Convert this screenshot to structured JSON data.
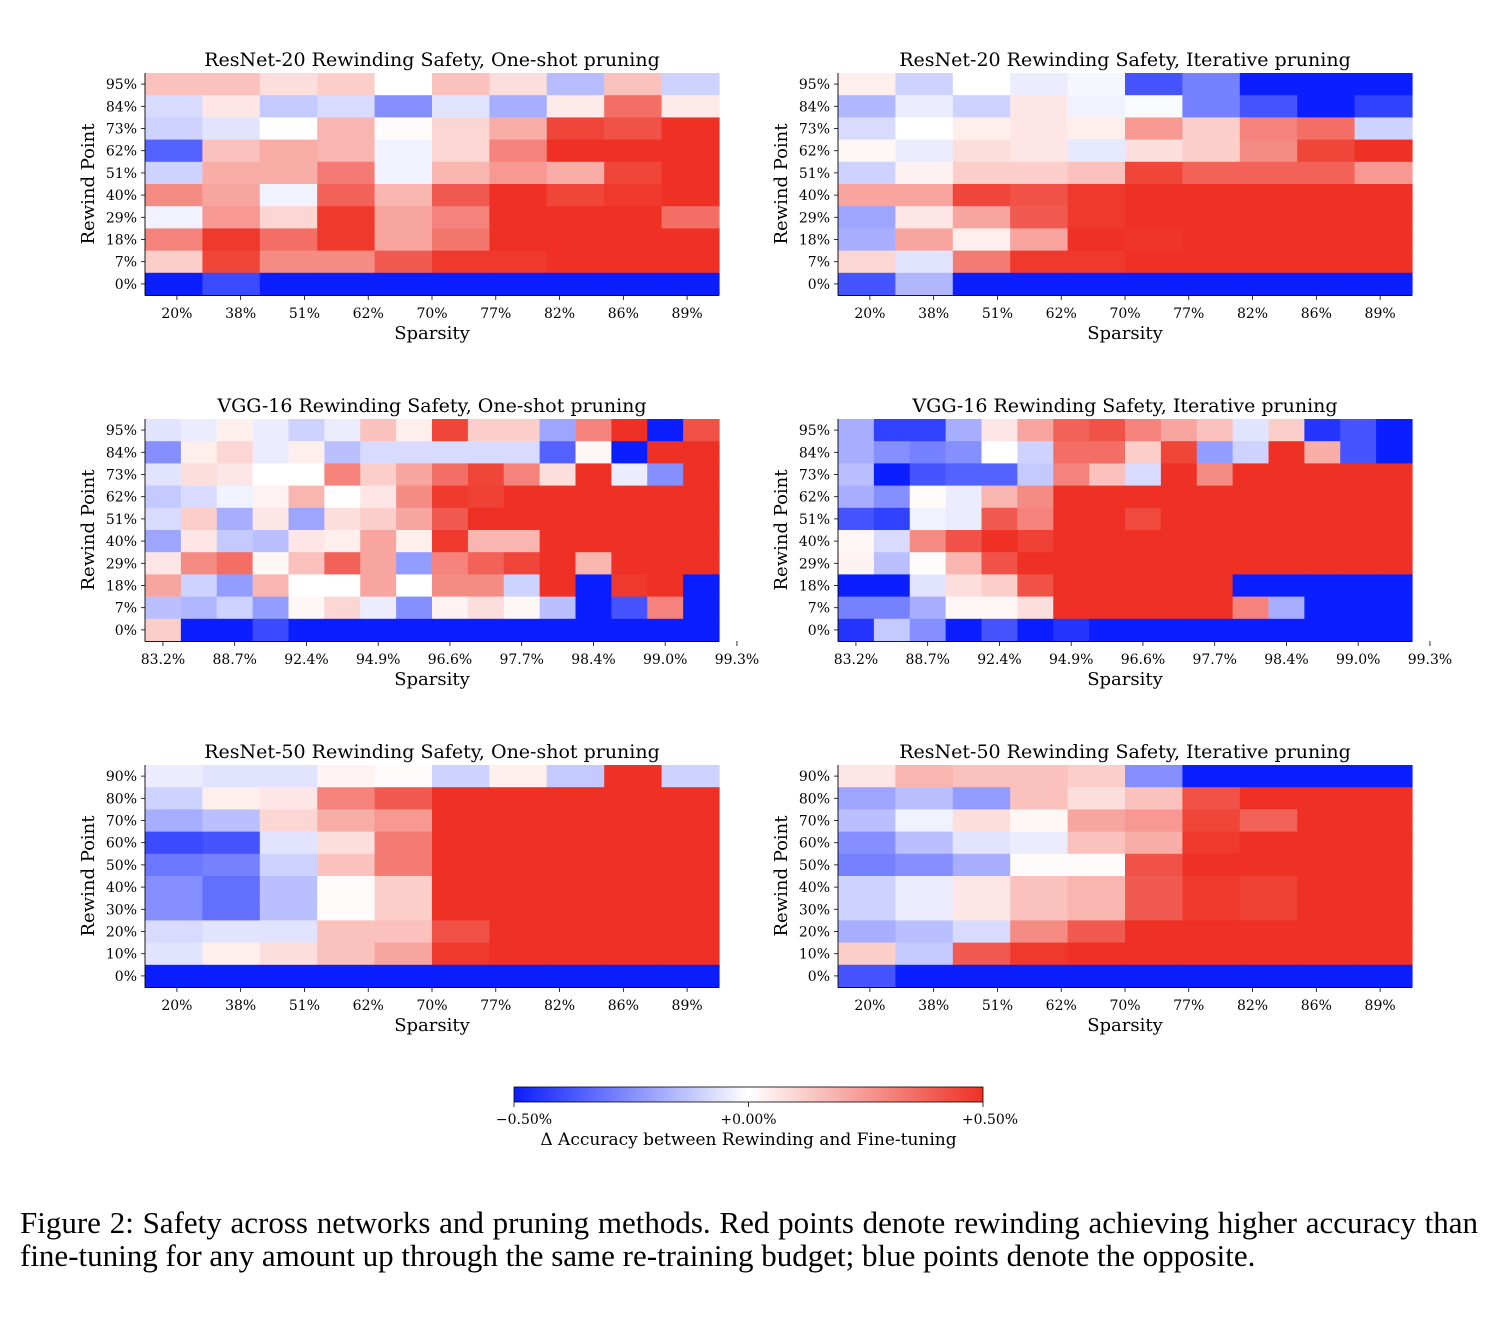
{
  "caption": "Figure 2:  Safety across networks and pruning methods.  Red points denote rewinding achieving higher accuracy than fine-tuning for any amount up through the same re-training budget; blue points denote the opposite.",
  "colors": {
    "negative": "#0a1eff",
    "neutral": "#ffffff",
    "positive": "#ee3124"
  },
  "chart_data": [
    {
      "type": "heatmap",
      "title": "ResNet-20 Rewinding Safety, One-shot pruning",
      "xlabel": "Sparsity",
      "ylabel": "Rewind Point",
      "x_tick_labels": [
        "20%",
        "38%",
        "51%",
        "62%",
        "70%",
        "77%",
        "82%",
        "86%",
        "89%"
      ],
      "y_tick_labels": [
        "95%",
        "84%",
        "73%",
        "62%",
        "51%",
        "40%",
        "29%",
        "18%",
        "7%",
        "0%"
      ],
      "n_cols": 10,
      "values": [
        [
          0.15,
          0.15,
          0.08,
          0.12,
          0,
          0.15,
          0.08,
          -0.15,
          0.15,
          -0.1
        ],
        [
          -0.08,
          0.06,
          -0.12,
          -0.08,
          -0.25,
          -0.06,
          -0.18,
          0.05,
          0.35,
          0.05
        ],
        [
          -0.1,
          -0.06,
          0,
          0.18,
          0.01,
          0.1,
          0.2,
          0.45,
          0.42,
          0.5
        ],
        [
          -0.35,
          0.15,
          0.2,
          0.18,
          -0.03,
          0.1,
          0.3,
          0.5,
          0.5,
          0.5
        ],
        [
          -0.1,
          0.2,
          0.2,
          0.32,
          -0.03,
          0.18,
          0.25,
          0.2,
          0.45,
          0.5
        ],
        [
          0.28,
          0.22,
          -0.03,
          0.38,
          0.18,
          0.4,
          0.5,
          0.45,
          0.48,
          0.5
        ],
        [
          -0.03,
          0.25,
          0.1,
          0.48,
          0.22,
          0.3,
          0.5,
          0.5,
          0.5,
          0.35
        ],
        [
          0.3,
          0.48,
          0.35,
          0.48,
          0.22,
          0.33,
          0.5,
          0.5,
          0.5,
          0.5
        ],
        [
          0.12,
          0.45,
          0.28,
          0.28,
          0.4,
          0.48,
          0.48,
          0.5,
          0.5,
          0.5
        ],
        [
          -0.5,
          -0.4,
          -0.5,
          -0.5,
          -0.5,
          -0.5,
          -0.5,
          -0.5,
          -0.5,
          -0.5
        ]
      ]
    },
    {
      "type": "heatmap",
      "title": "ResNet-20 Rewinding Safety, Iterative pruning",
      "xlabel": "Sparsity",
      "ylabel": "Rewind Point",
      "x_tick_labels": [
        "20%",
        "38%",
        "51%",
        "62%",
        "70%",
        "77%",
        "82%",
        "86%",
        "89%"
      ],
      "y_tick_labels": [
        "95%",
        "84%",
        "73%",
        "62%",
        "51%",
        "40%",
        "29%",
        "18%",
        "7%",
        "0%"
      ],
      "n_cols": 10,
      "values": [
        [
          0.04,
          -0.1,
          0,
          -0.04,
          -0.02,
          -0.38,
          -0.28,
          -0.5,
          -0.5,
          -0.5
        ],
        [
          -0.16,
          -0.04,
          -0.1,
          0.06,
          -0.03,
          -0.01,
          -0.28,
          -0.38,
          -0.5,
          -0.42
        ],
        [
          -0.08,
          0,
          0.04,
          0.06,
          0.04,
          0.25,
          0.12,
          0.3,
          0.35,
          -0.1
        ],
        [
          0.02,
          -0.04,
          0.08,
          0.06,
          -0.05,
          0.08,
          0.12,
          0.28,
          0.45,
          0.5
        ],
        [
          -0.1,
          0.03,
          0.12,
          0.12,
          0.15,
          0.45,
          0.38,
          0.38,
          0.38,
          0.25
        ],
        [
          0.22,
          0.22,
          0.45,
          0.42,
          0.48,
          0.5,
          0.5,
          0.5,
          0.5,
          0.5
        ],
        [
          -0.2,
          0.06,
          0.22,
          0.4,
          0.48,
          0.5,
          0.5,
          0.5,
          0.5,
          0.5
        ],
        [
          -0.18,
          0.22,
          0.04,
          0.22,
          0.5,
          0.49,
          0.5,
          0.5,
          0.5,
          0.5
        ],
        [
          0.1,
          -0.06,
          0.32,
          0.48,
          0.48,
          0.5,
          0.5,
          0.5,
          0.5,
          0.5
        ],
        [
          -0.38,
          -0.16,
          -0.5,
          -0.5,
          -0.5,
          -0.5,
          -0.5,
          -0.5,
          -0.5,
          -0.5
        ]
      ]
    },
    {
      "type": "heatmap",
      "title": "VGG-16 Rewinding Safety, One-shot pruning",
      "xlabel": "Sparsity",
      "ylabel": "Rewind Point",
      "x_tick_labels": [
        "83.2%",
        "88.7%",
        "92.4%",
        "94.9%",
        "96.6%",
        "97.7%",
        "98.4%",
        "99.0%",
        "99.3%"
      ],
      "y_tick_labels": [
        "95%",
        "84%",
        "73%",
        "62%",
        "51%",
        "40%",
        "29%",
        "18%",
        "7%",
        "0%"
      ],
      "n_cols": 16,
      "values": [
        [
          -0.06,
          -0.04,
          0.04,
          -0.04,
          -0.1,
          -0.04,
          0.15,
          0.04,
          0.45,
          0.12,
          0.12,
          -0.2,
          0.3,
          0.5,
          -0.5,
          0.42
        ],
        [
          -0.25,
          0.04,
          0.1,
          -0.04,
          0.04,
          -0.14,
          -0.08,
          -0.08,
          -0.08,
          -0.08,
          -0.08,
          -0.35,
          0.02,
          -0.5,
          0.5,
          0.5
        ],
        [
          -0.06,
          0.08,
          0.06,
          0,
          0,
          0.3,
          0.12,
          0.22,
          0.35,
          0.45,
          0.3,
          0.08,
          0.5,
          -0.04,
          -0.25,
          0.5
        ],
        [
          -0.12,
          -0.08,
          -0.03,
          0.03,
          0.18,
          0,
          0.06,
          0.28,
          0.48,
          0.46,
          0.5,
          0.5,
          0.5,
          0.5,
          0.5,
          0.5
        ],
        [
          -0.08,
          0.12,
          -0.18,
          0.06,
          -0.2,
          0.08,
          0.12,
          0.22,
          0.4,
          0.5,
          0.5,
          0.5,
          0.5,
          0.5,
          0.5,
          0.5
        ],
        [
          -0.2,
          0.06,
          -0.12,
          -0.14,
          0.06,
          0.04,
          0.22,
          0.04,
          0.48,
          0.18,
          0.18,
          0.5,
          0.5,
          0.5,
          0.5,
          0.5
        ],
        [
          0.06,
          0.28,
          0.35,
          0.02,
          0.15,
          0.38,
          0.22,
          -0.22,
          0.3,
          0.38,
          0.45,
          0.5,
          0.18,
          0.5,
          0.5,
          0.5
        ],
        [
          0.22,
          -0.1,
          -0.22,
          0.18,
          0,
          0,
          0.22,
          0,
          0.28,
          0.28,
          -0.1,
          0.5,
          -0.5,
          0.48,
          0.5,
          -0.5
        ],
        [
          -0.14,
          -0.16,
          -0.1,
          -0.22,
          0.02,
          0.1,
          -0.04,
          -0.25,
          0.03,
          0.08,
          0.02,
          -0.14,
          -0.5,
          -0.38,
          0.3,
          -0.5
        ],
        [
          0.12,
          -0.5,
          -0.5,
          -0.4,
          -0.5,
          -0.5,
          -0.5,
          -0.5,
          -0.5,
          -0.5,
          -0.5,
          -0.5,
          -0.5,
          -0.5,
          -0.5,
          -0.5
        ]
      ]
    },
    {
      "type": "heatmap",
      "title": "VGG-16 Rewinding Safety, Iterative pruning",
      "xlabel": "Sparsity",
      "ylabel": "Rewind Point",
      "x_tick_labels": [
        "83.2%",
        "88.7%",
        "92.4%",
        "94.9%",
        "96.6%",
        "97.7%",
        "98.4%",
        "99.0%",
        "99.3%"
      ],
      "y_tick_labels": [
        "95%",
        "84%",
        "73%",
        "62%",
        "51%",
        "40%",
        "29%",
        "18%",
        "7%",
        "0%"
      ],
      "n_cols": 16,
      "values": [
        [
          -0.18,
          -0.42,
          -0.42,
          -0.18,
          0.06,
          0.22,
          0.38,
          0.42,
          0.3,
          0.22,
          0.15,
          -0.06,
          0.12,
          -0.45,
          -0.38,
          -0.5
        ],
        [
          -0.18,
          -0.25,
          -0.28,
          -0.25,
          0,
          -0.1,
          0.35,
          0.35,
          0.12,
          0.45,
          -0.22,
          -0.1,
          0.5,
          0.2,
          -0.38,
          -0.5
        ],
        [
          -0.14,
          -0.5,
          -0.38,
          -0.35,
          -0.35,
          -0.12,
          0.3,
          0.15,
          -0.08,
          0.5,
          0.28,
          0.5,
          0.5,
          0.5,
          0.5,
          0.5
        ],
        [
          -0.18,
          -0.25,
          0.01,
          -0.04,
          0.18,
          0.28,
          0.5,
          0.5,
          0.5,
          0.5,
          0.5,
          0.5,
          0.5,
          0.5,
          0.5,
          0.5
        ],
        [
          -0.38,
          -0.42,
          -0.03,
          -0.04,
          0.4,
          0.3,
          0.5,
          0.5,
          0.44,
          0.5,
          0.5,
          0.5,
          0.5,
          0.5,
          0.5,
          0.5
        ],
        [
          0.02,
          -0.08,
          0.28,
          0.42,
          0.5,
          0.46,
          0.5,
          0.5,
          0.5,
          0.5,
          0.5,
          0.5,
          0.5,
          0.5,
          0.5,
          0.5
        ],
        [
          0.03,
          -0.14,
          0.01,
          0.18,
          0.42,
          0.5,
          0.5,
          0.5,
          0.5,
          0.5,
          0.5,
          0.5,
          0.5,
          0.5,
          0.5,
          0.5
        ],
        [
          -0.5,
          -0.5,
          -0.06,
          0.08,
          0.12,
          0.42,
          0.5,
          0.5,
          0.5,
          0.5,
          0.5,
          -0.5,
          -0.5,
          -0.5,
          -0.5,
          -0.5
        ],
        [
          -0.28,
          -0.28,
          -0.18,
          0.02,
          0.02,
          0.08,
          0.5,
          0.5,
          0.5,
          0.5,
          0.5,
          0.3,
          -0.18,
          -0.5,
          -0.5,
          -0.5
        ],
        [
          -0.45,
          -0.12,
          -0.25,
          -0.5,
          -0.38,
          -0.5,
          -0.45,
          -0.5,
          -0.5,
          -0.5,
          -0.5,
          -0.5,
          -0.5,
          -0.5,
          -0.5,
          -0.5
        ]
      ]
    },
    {
      "type": "heatmap",
      "title": "ResNet-50 Rewinding Safety, One-shot pruning",
      "xlabel": "Sparsity",
      "ylabel": "Rewind Point",
      "x_tick_labels": [
        "20%",
        "38%",
        "51%",
        "62%",
        "70%",
        "77%",
        "82%",
        "86%",
        "89%"
      ],
      "y_tick_labels": [
        "90%",
        "80%",
        "70%",
        "60%",
        "50%",
        "40%",
        "30%",
        "20%",
        "10%",
        "0%"
      ],
      "n_cols": 10,
      "values": [
        [
          -0.04,
          -0.06,
          -0.06,
          0.03,
          0.01,
          -0.1,
          0.04,
          -0.12,
          0.5,
          -0.1
        ],
        [
          -0.1,
          0.04,
          0.06,
          0.3,
          0.4,
          0.5,
          0.5,
          0.5,
          0.5,
          0.5
        ],
        [
          -0.18,
          -0.14,
          0.1,
          0.2,
          0.25,
          0.5,
          0.5,
          0.5,
          0.5,
          0.5
        ],
        [
          -0.4,
          -0.38,
          -0.06,
          0.08,
          0.32,
          0.5,
          0.5,
          0.5,
          0.5,
          0.5
        ],
        [
          -0.3,
          -0.28,
          -0.1,
          0.15,
          0.32,
          0.5,
          0.5,
          0.5,
          0.5,
          0.5
        ],
        [
          -0.25,
          -0.32,
          -0.14,
          0.01,
          0.12,
          0.5,
          0.5,
          0.5,
          0.5,
          0.5
        ],
        [
          -0.25,
          -0.32,
          -0.14,
          0.01,
          0.12,
          0.5,
          0.5,
          0.5,
          0.5,
          0.5
        ],
        [
          -0.08,
          -0.06,
          -0.06,
          0.15,
          0.15,
          0.42,
          0.5,
          0.5,
          0.5,
          0.5
        ],
        [
          -0.06,
          0.04,
          0.08,
          0.15,
          0.22,
          0.48,
          0.5,
          0.5,
          0.5,
          0.5
        ],
        [
          -0.5,
          -0.5,
          -0.5,
          -0.5,
          -0.5,
          -0.5,
          -0.5,
          -0.5,
          -0.5,
          -0.5
        ]
      ]
    },
    {
      "type": "heatmap",
      "title": "ResNet-50 Rewinding Safety, Iterative pruning",
      "xlabel": "Sparsity",
      "ylabel": "Rewind Point",
      "x_tick_labels": [
        "20%",
        "38%",
        "51%",
        "62%",
        "70%",
        "77%",
        "82%",
        "86%",
        "89%"
      ],
      "y_tick_labels": [
        "90%",
        "80%",
        "70%",
        "60%",
        "50%",
        "40%",
        "30%",
        "20%",
        "10%",
        "0%"
      ],
      "n_cols": 10,
      "values": [
        [
          0.06,
          0.18,
          0.15,
          0.15,
          0.12,
          -0.25,
          -0.5,
          -0.5,
          -0.5,
          -0.5
        ],
        [
          -0.2,
          -0.14,
          -0.22,
          0.15,
          0.08,
          0.15,
          0.42,
          0.5,
          0.5,
          0.5
        ],
        [
          -0.14,
          -0.03,
          0.08,
          0.02,
          0.22,
          0.25,
          0.45,
          0.38,
          0.5,
          0.5
        ],
        [
          -0.25,
          -0.14,
          -0.06,
          -0.04,
          0.15,
          0.2,
          0.48,
          0.5,
          0.5,
          0.5
        ],
        [
          -0.28,
          -0.25,
          -0.18,
          0.01,
          0.01,
          0.42,
          0.5,
          0.5,
          0.5,
          0.5
        ],
        [
          -0.1,
          -0.04,
          0.06,
          0.15,
          0.18,
          0.4,
          0.48,
          0.46,
          0.5,
          0.5
        ],
        [
          -0.1,
          -0.04,
          0.06,
          0.15,
          0.18,
          0.4,
          0.48,
          0.46,
          0.5,
          0.5
        ],
        [
          -0.18,
          -0.14,
          -0.08,
          0.28,
          0.4,
          0.5,
          0.5,
          0.5,
          0.5,
          0.5
        ],
        [
          0.12,
          -0.12,
          0.4,
          0.48,
          0.5,
          0.5,
          0.5,
          0.5,
          0.5,
          0.5
        ],
        [
          -0.38,
          -0.5,
          -0.5,
          -0.5,
          -0.5,
          -0.5,
          -0.5,
          -0.5,
          -0.5,
          -0.5
        ]
      ]
    }
  ],
  "colorbar": {
    "min": -0.5,
    "max": 0.5,
    "tick_labels": [
      "−0.50%",
      "+0.00%",
      "+0.50%"
    ],
    "label": "Δ Accuracy between Rewinding and Fine-tuning"
  }
}
